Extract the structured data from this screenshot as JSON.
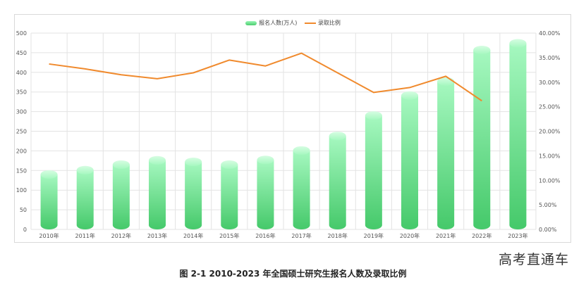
{
  "legend": {
    "bar_label": "报名人数(万人)",
    "line_label": "录取比例"
  },
  "watermark": "高考直通车",
  "caption": "图  2-1 2010-2023 年全国硕士研究生报名人数及录取比例",
  "colors": {
    "bar_top": "#a6f8c0",
    "bar_bottom": "#45c96a",
    "line": "#f08a2d",
    "grid": "#e3e3e3",
    "axis_text": "#555555"
  },
  "chart_data": {
    "type": "bar",
    "title": "",
    "categories": [
      "2010年",
      "2011年",
      "2012年",
      "2013年",
      "2014年",
      "2015年",
      "2016年",
      "2017年",
      "2018年",
      "2019年",
      "2020年",
      "2021年",
      "2022年",
      "2023年"
    ],
    "series": [
      {
        "name": "报名人数(万人)",
        "type": "bar",
        "axis": "left",
        "values": [
          140,
          151,
          165,
          176,
          172,
          165,
          177,
          201,
          238,
          290,
          341,
          377,
          457,
          474
        ]
      },
      {
        "name": "录取比例",
        "type": "line",
        "axis": "right",
        "values": [
          0.337,
          0.327,
          0.315,
          0.307,
          0.319,
          0.345,
          0.333,
          0.359,
          0.319,
          0.279,
          0.289,
          0.312,
          0.262,
          null
        ]
      }
    ],
    "left_axis": {
      "min": 0,
      "max": 500,
      "step": 50,
      "ticks": [
        "0",
        "50",
        "100",
        "150",
        "200",
        "250",
        "300",
        "350",
        "400",
        "450",
        "500"
      ]
    },
    "right_axis": {
      "min": 0,
      "max": 0.4,
      "step": 0.05,
      "ticks": [
        "0.00%",
        "5.00%",
        "10.00%",
        "15.00%",
        "20.00%",
        "25.00%",
        "30.00%",
        "35.00%",
        "40.00%"
      ]
    },
    "grid": true,
    "legend_position": "top-center"
  }
}
